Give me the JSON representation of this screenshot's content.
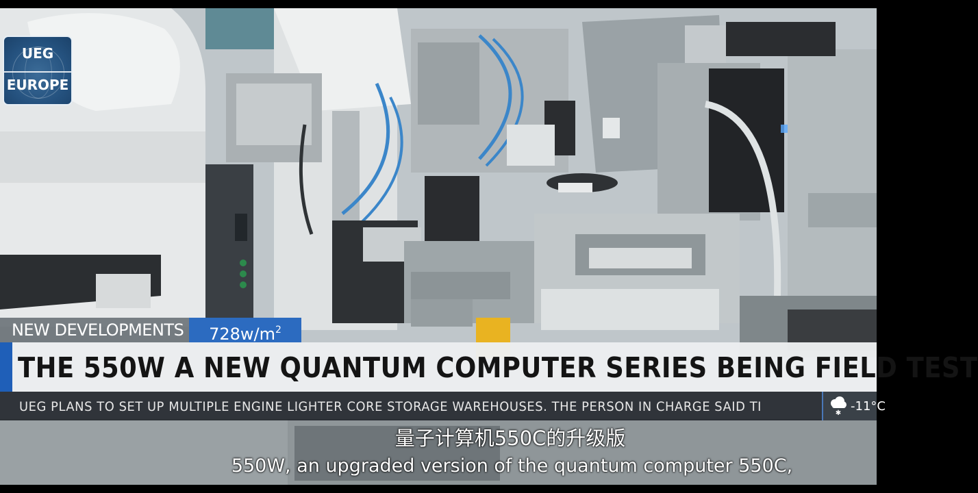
{
  "logo": {
    "line1": "UEG",
    "line2": "EUROPE"
  },
  "lower_third": {
    "category": "NEW DEVELOPMENTS",
    "value": "728w/m",
    "value_superscript": "2",
    "headline": "THE 550W A NEW QUANTUM COMPUTER SERIES BEING FIELD TEST",
    "ticker": "UEG PLANS TO SET UP MULTIPLE ENGINE LIGHTER CORE STORAGE WAREHOUSES. THE PERSON IN CHARGE SAID TI",
    "weather": {
      "icon": "snow-cloud-icon",
      "temperature": "-11°C"
    }
  },
  "subtitles": {
    "chinese": "量子计算机550C的升级版",
    "english": "550W, an upgraded version of the quantum computer 550C,"
  },
  "colors": {
    "accent_blue": "#2c6bc0",
    "headline_bg": "#eceef0",
    "ticker_bg": "#1c2026",
    "category_bg": "#6e747a"
  }
}
